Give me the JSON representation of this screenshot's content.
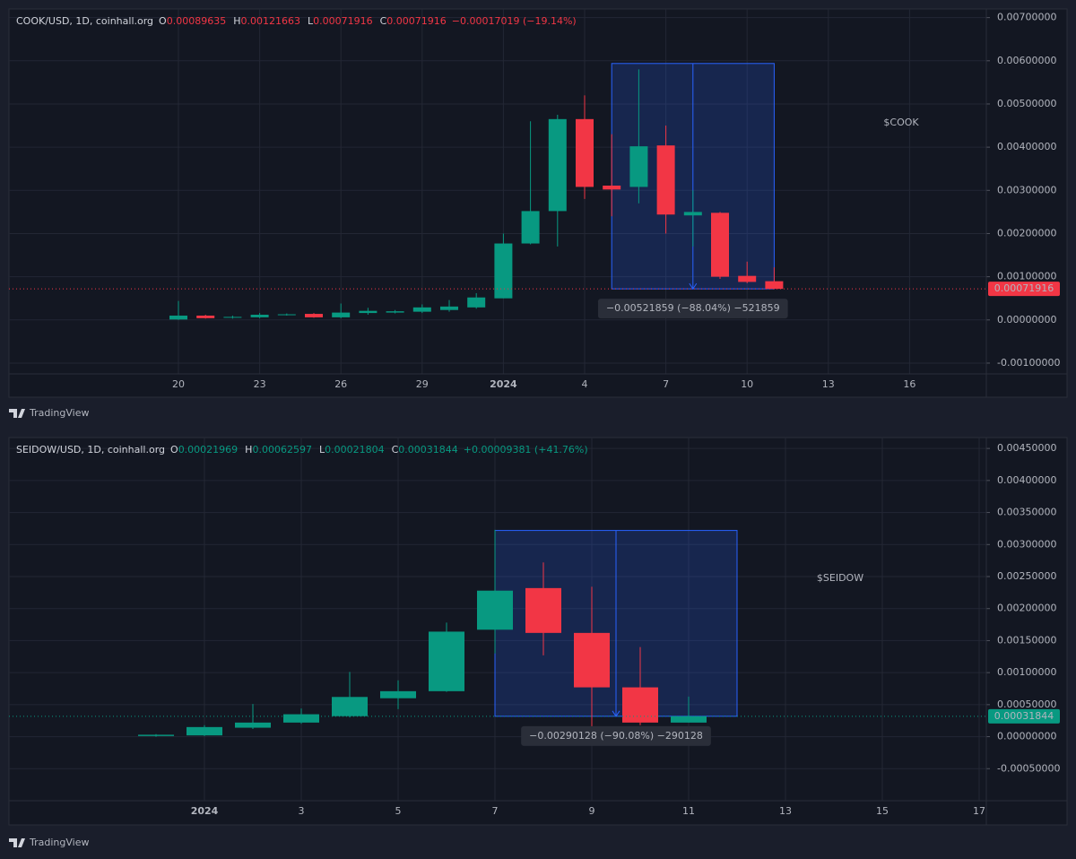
{
  "chart_data": [
    {
      "type": "candlestick",
      "title": "COOK/USD, 1D, coinhall.org",
      "ohlc_labels": [
        "O",
        "H",
        "L",
        "C"
      ],
      "change": "−0.00017019 (−19.14%)",
      "annotation": "$COOK",
      "measure": {
        "label": "−0.00521859 (−88.04%) −521859",
        "high": 0.00593775,
        "low": 0.00071916
      },
      "categories": [
        "20",
        null,
        null,
        "23",
        null,
        null,
        "26",
        null,
        null,
        "29",
        null,
        null,
        "2024",
        null,
        null,
        "4",
        null,
        null,
        "7",
        null,
        null,
        "10",
        null,
        null,
        "13",
        null,
        null,
        "16",
        null,
        null
      ],
      "open": [
        1e-05,
        0.0001,
        5e-05,
        6e-05,
        0.00011,
        0.00014,
        6e-05,
        0.00016,
        0.00017,
        0.00019,
        0.00023,
        0.00029,
        0.0005,
        0.00177,
        0.00252,
        0.00465,
        0.00311,
        0.00308,
        0.00404,
        0.00242,
        0.00248,
        0.00102,
        0.00089635,
        null,
        null,
        null,
        null,
        null,
        null,
        null
      ],
      "high": [
        0.00044,
        0.00012,
        0.0001,
        0.00016,
        0.00015,
        0.00016,
        0.00038,
        0.00028,
        0.00023,
        0.00036,
        0.00046,
        0.00062,
        0.002,
        0.0046,
        0.00475,
        0.0052,
        0.0043,
        0.0058,
        0.0045,
        0.003,
        0.0025,
        0.00135,
        0.00121663,
        null,
        null,
        null,
        null,
        null,
        null,
        null
      ],
      "low": [
        0,
        3e-05,
        3e-05,
        4e-05,
        0.0001,
        5e-05,
        4e-05,
        0.00012,
        0.00015,
        0.00016,
        0.00019,
        0.00026,
        0.0005,
        0.00175,
        0.0017,
        0.0028,
        0.0024,
        0.0027,
        0.002,
        0.0017,
        0.00095,
        0.00085,
        0.00071916,
        null,
        null,
        null,
        null,
        null,
        null,
        null
      ],
      "close": [
        0.0001,
        4e-05,
        7e-05,
        0.00012,
        0.00013,
        6e-05,
        0.00017,
        0.00021,
        0.0002,
        0.00029,
        0.00031,
        0.00052,
        0.00177,
        0.00252,
        0.00465,
        0.00308,
        0.00302,
        0.00402,
        0.00244,
        0.0025,
        0.001,
        0.00088,
        0.00071916,
        null,
        null,
        null,
        null,
        null,
        null,
        null
      ],
      "colors": {
        "up": "#089981",
        "down": "#f23645"
      },
      "ylim": [
        -0.00125,
        0.0072
      ],
      "yticks": [
        {
          "value": 0.007,
          "label": "0.00700000"
        },
        {
          "value": 0.006,
          "label": "0.00600000"
        },
        {
          "value": 0.005,
          "label": "0.00500000"
        },
        {
          "value": 0.004,
          "label": "0.00400000"
        },
        {
          "value": 0.003,
          "label": "0.00300000"
        },
        {
          "value": 0.002,
          "label": "0.00200000"
        },
        {
          "value": 0.001,
          "label": "0.00100000"
        },
        {
          "value": 0,
          "label": "0.00000000"
        },
        {
          "value": -0.001,
          "label": "-0.00100000"
        }
      ],
      "grid": true,
      "footer": "TradingView"
    },
    {
      "type": "candlestick",
      "title": "SEIDOW/USD, 1D, coinhall.org",
      "ohlc_labels": [
        "O",
        "H",
        "L",
        "C"
      ],
      "change": "+0.00009381 (+41.76%)",
      "annotation": "$SEIDOW",
      "measure": {
        "label": "−0.00290128 (−90.08%) −290128",
        "high": 0.00321972,
        "low": 0.00031844
      },
      "categories": [
        null,
        "2024",
        null,
        "3",
        null,
        "5",
        null,
        "7",
        null,
        "9",
        null,
        "11",
        null,
        "13",
        null,
        "15",
        null,
        "17"
      ],
      "open": [
        1e-05,
        2e-05,
        0.00014,
        0.00022,
        0.00032,
        0.0006,
        0.00071,
        0.00167,
        0.00232,
        0.00162,
        0.00077,
        0.00021969,
        null,
        null,
        null,
        null,
        null,
        null
      ],
      "high": [
        4e-05,
        0.00018,
        0.00051,
        0.00044,
        0.00101,
        0.00088,
        0.00178,
        0.00323,
        0.00272,
        0.00234,
        0.0014,
        0.00062597,
        null,
        null,
        null,
        null,
        null,
        null
      ],
      "low": [
        0,
        1e-05,
        0.00012,
        0.0002,
        0.0003,
        0.00043,
        0.0007,
        0.0013,
        0.00127,
        2e-05,
        0.00018,
        0.00021804,
        null,
        null,
        null,
        null,
        null,
        null
      ],
      "close": [
        3e-05,
        0.00015,
        0.00022,
        0.00035,
        0.00062,
        0.00071,
        0.00164,
        0.00228,
        0.00162,
        0.00077,
        0.00022,
        0.00031844,
        null,
        null,
        null,
        null,
        null,
        null
      ],
      "colors": {
        "up": "#089981",
        "down": "#f23645"
      },
      "ylim": [
        -0.001,
        0.00467
      ],
      "yticks": [
        {
          "value": 0.0045,
          "label": "0.00450000"
        },
        {
          "value": 0.004,
          "label": "0.00400000"
        },
        {
          "value": 0.0035,
          "label": "0.00350000"
        },
        {
          "value": 0.003,
          "label": "0.00300000"
        },
        {
          "value": 0.0025,
          "label": "0.00250000"
        },
        {
          "value": 0.002,
          "label": "0.00200000"
        },
        {
          "value": 0.0015,
          "label": "0.00150000"
        },
        {
          "value": 0.001,
          "label": "0.00100000"
        },
        {
          "value": 0.0005,
          "label": "0.00050000"
        },
        {
          "value": 0,
          "label": "0.00000000"
        },
        {
          "value": -0.0005,
          "label": "-0.00050000"
        }
      ],
      "grid": true,
      "footer": "TradingView"
    }
  ]
}
